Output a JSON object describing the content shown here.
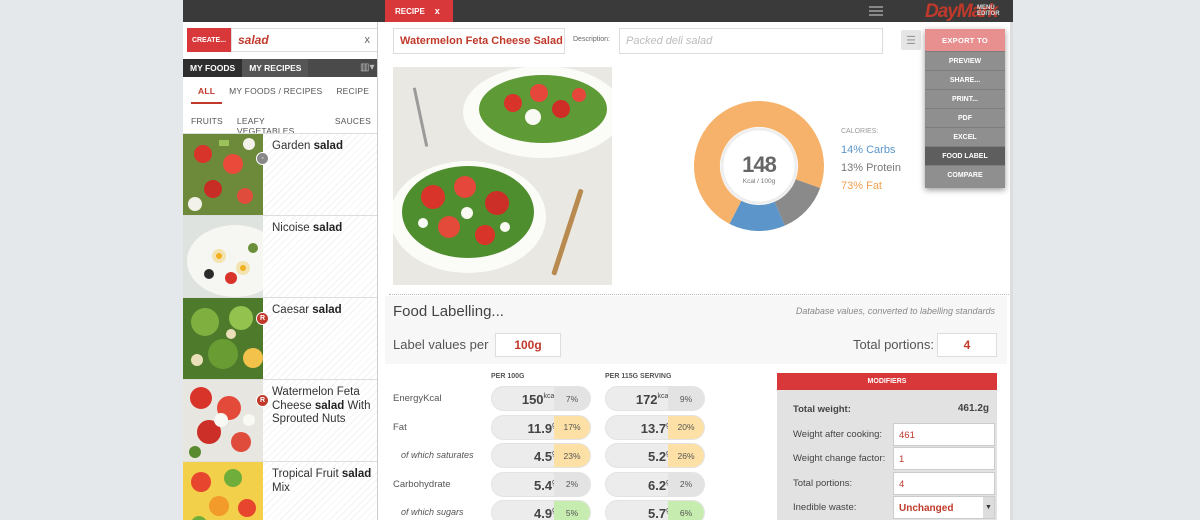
{
  "sidebar": {
    "create_label": "CREATE...",
    "search_value": "salad",
    "search_clear": "x",
    "tabs": [
      "MY FOODS",
      "MY RECIPES"
    ],
    "filters_row1": [
      "ALL",
      "MY FOODS / RECIPES",
      "RECIPE"
    ],
    "filters_row2": [
      "FRUITS",
      "LEAFY VEGETABLES",
      "SAUCES"
    ],
    "results": [
      {
        "prefix": "Garden ",
        "bold": "salad",
        "suffix": "",
        "badge": ""
      },
      {
        "prefix": "Nicoise ",
        "bold": "salad",
        "suffix": "",
        "badge": ""
      },
      {
        "prefix": "Caesar ",
        "bold": "salad",
        "suffix": "",
        "badge": "R"
      },
      {
        "prefix": "Watermelon Feta Cheese ",
        "bold": "salad",
        "suffix": " With Sprouted Nuts",
        "badge": "R"
      },
      {
        "prefix": "Tropical Fruit ",
        "bold": "salad",
        "suffix": " Mix",
        "badge": ""
      }
    ]
  },
  "header": {
    "tab_label": "RECIPE",
    "tab_close": "x",
    "brand_name": "DayMark",
    "brand_sub1": "MENU",
    "brand_sub2": "EDITOR"
  },
  "recipe": {
    "title": "Watermelon Feta Cheese Salad",
    "description_label": "Description:",
    "description_placeholder": "Packed deli salad"
  },
  "export_menu": {
    "title": "EXPORT TO",
    "items": [
      "PREVIEW",
      "SHARE...",
      "PRINT...",
      "PDF",
      "EXCEL",
      "FOOD LABEL",
      "COMPARE"
    ],
    "selected": "FOOD LABEL"
  },
  "calories": {
    "value": "148",
    "unit": "Kcal / 100g",
    "label": "CALORIES:",
    "breakdown": [
      {
        "pct": "14%",
        "name": "Carbs",
        "color": "#5b95c9",
        "value": 14
      },
      {
        "pct": "13%",
        "name": "Protein",
        "color": "#8a8a8a",
        "value": 13
      },
      {
        "pct": "73%",
        "name": "Fat",
        "color": "#f6b26b",
        "value": 73
      }
    ]
  },
  "labelling": {
    "heading": "Food Labelling...",
    "note": "Database values, converted to labelling standards",
    "label_values_per": "Label values per",
    "per_value": "100g",
    "total_portions_label": "Total portions:",
    "total_portions_value": "4"
  },
  "nutrition": {
    "col1_header": "PER 100G",
    "col2_header": "PER 115G SERVING",
    "rows": [
      {
        "name": "EnergyKcal",
        "sub": false,
        "v1": "150",
        "u1": "kcal",
        "p1": "7%",
        "c1": "grey",
        "v2": "172",
        "u2": "kcal",
        "p2": "9%",
        "c2": "grey"
      },
      {
        "name": "Fat",
        "sub": false,
        "v1": "11.9",
        "u1": "g",
        "p1": "17%",
        "c1": "amber",
        "v2": "13.7",
        "u2": "g",
        "p2": "20%",
        "c2": "amber"
      },
      {
        "name": "of which saturates",
        "sub": true,
        "v1": "4.5",
        "u1": "g",
        "p1": "23%",
        "c1": "amber",
        "v2": "5.2",
        "u2": "g",
        "p2": "26%",
        "c2": "amber"
      },
      {
        "name": "Carbohydrate",
        "sub": false,
        "v1": "5.4",
        "u1": "g",
        "p1": "2%",
        "c1": "grey",
        "v2": "6.2",
        "u2": "g",
        "p2": "2%",
        "c2": "grey"
      },
      {
        "name": "of which sugars",
        "sub": true,
        "v1": "4.9",
        "u1": "g",
        "p1": "5%",
        "c1": "green",
        "v2": "5.7",
        "u2": "g",
        "p2": "6%",
        "c2": "green"
      }
    ]
  },
  "modifiers": {
    "title": "MODIFIERS",
    "total_weight_label": "Total weight:",
    "total_weight_value": "461.2g",
    "rows": [
      {
        "label": "Weight after cooking:",
        "value": "461"
      },
      {
        "label": "Weight change factor:",
        "value": "1"
      },
      {
        "label": "Total portions:",
        "value": "4"
      }
    ],
    "waste_label": "Inedible waste:",
    "waste_value": "Unchanged"
  }
}
